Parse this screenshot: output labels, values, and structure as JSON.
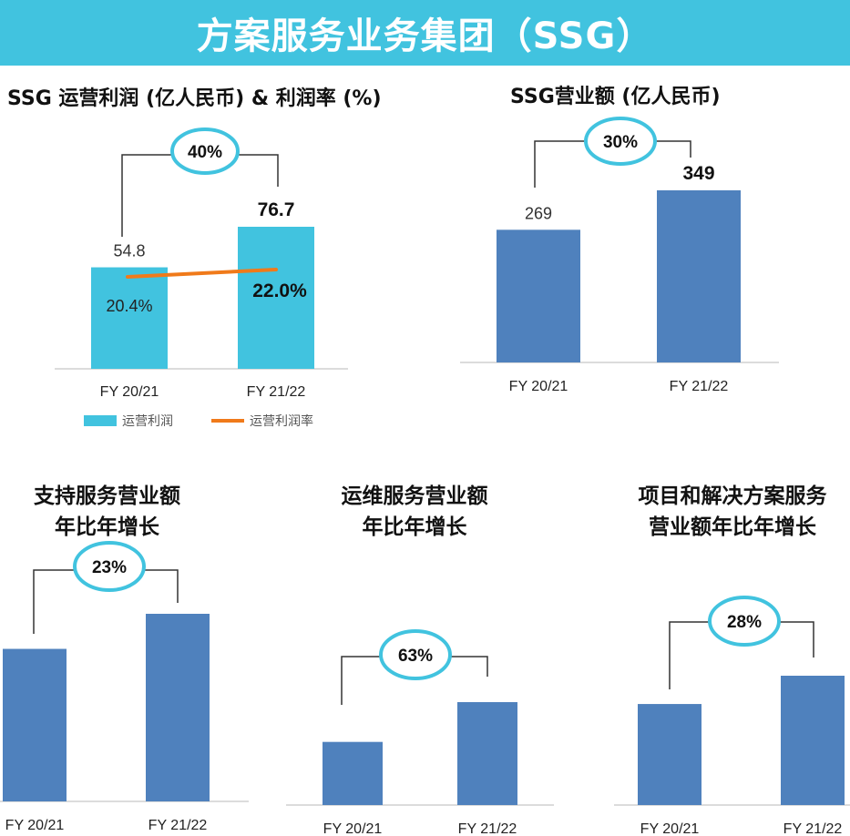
{
  "banner": {
    "title": "方案服务业务集团（SSG）"
  },
  "colors": {
    "banner": "#41c3df",
    "bar_light": "#41c3df",
    "bar_blue": "#4f81bd",
    "line": "#f07a1a",
    "bubble": "#41c3df"
  },
  "chart_data": [
    {
      "id": "profit",
      "type": "bar",
      "title": "SSG 运营利润 (亿人民币) & 利润率 (%)",
      "categories": [
        "FY 20/21",
        "FY 21/22"
      ],
      "series": [
        {
          "name": "运营利润",
          "values": [
            54.8,
            76.7
          ],
          "labels": [
            "54.8",
            "76.7"
          ]
        },
        {
          "name": "运营利润率",
          "type": "line",
          "values": [
            20.4,
            22.0
          ],
          "labels": [
            "20.4%",
            "22.0%"
          ]
        }
      ],
      "growth": "40%",
      "legend_position": "bottom"
    },
    {
      "id": "revenue",
      "type": "bar",
      "title": "SSG营业额 (亿人民币)",
      "categories": [
        "FY 20/21",
        "FY 21/22"
      ],
      "values": [
        269,
        349
      ],
      "labels": [
        "269",
        "349"
      ],
      "growth": "30%"
    },
    {
      "id": "support",
      "type": "bar",
      "title": [
        "支持服务营业额",
        "年比年增长"
      ],
      "categories": [
        "FY 20/21",
        "FY 21/22"
      ],
      "values": [
        100,
        123
      ],
      "growth": "23%"
    },
    {
      "id": "ops",
      "type": "bar",
      "title": [
        "运维服务营业额",
        "年比年增长"
      ],
      "categories": [
        "FY 20/21",
        "FY 21/22"
      ],
      "values": [
        100,
        163
      ],
      "growth": "63%"
    },
    {
      "id": "projects",
      "type": "bar",
      "title": [
        "项目和解决方案服务",
        "营业额年比年增长"
      ],
      "categories": [
        "FY 20/21",
        "FY 21/22"
      ],
      "values": [
        100,
        128
      ],
      "growth": "28%"
    }
  ]
}
